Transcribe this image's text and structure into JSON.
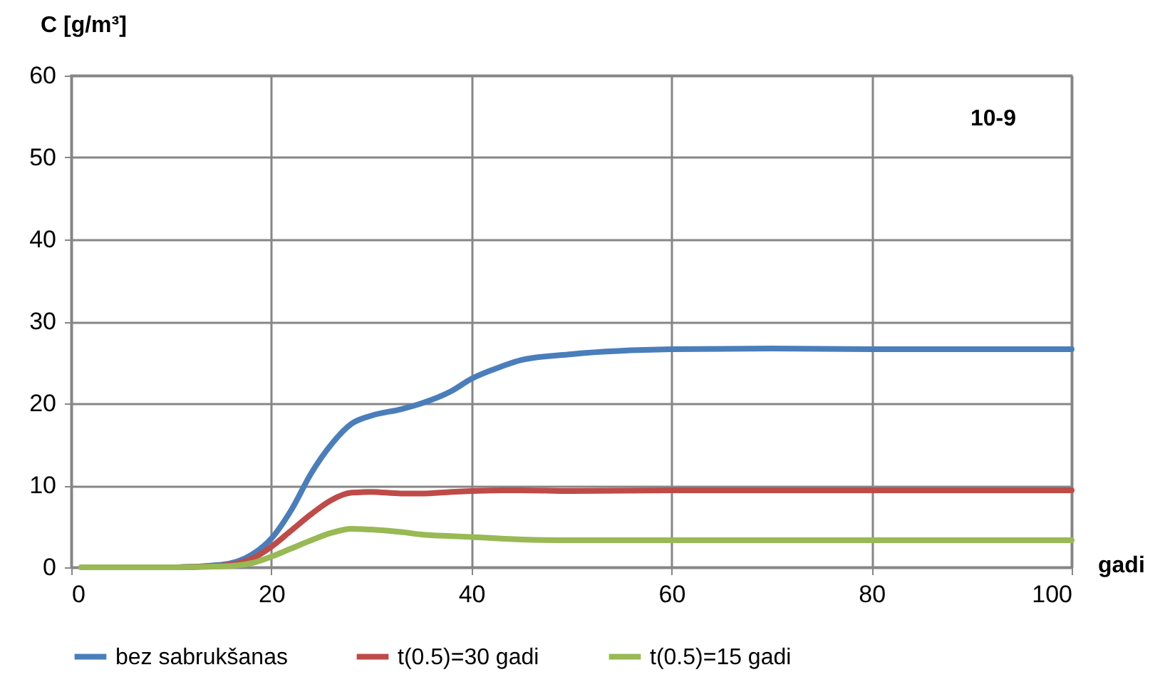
{
  "chart_data": {
    "type": "line",
    "ylabel": "C [g/m³]",
    "xlabel": "gadi",
    "annotations": [
      "10-9"
    ],
    "x": [
      1,
      5,
      10,
      15,
      18,
      20,
      22,
      24,
      26,
      28,
      30,
      33,
      35,
      38,
      40,
      43,
      45,
      50,
      60,
      70,
      80,
      90,
      100
    ],
    "series": [
      {
        "name": "bez sabrukšanas",
        "color": "#4a7ebb",
        "values": [
          0,
          0,
          0,
          0.3,
          1.5,
          3.5,
          7,
          11.5,
          15,
          17.5,
          18.5,
          19.3,
          20,
          21.5,
          23,
          24.5,
          25.3,
          26,
          26.6,
          26.7,
          26.6,
          26.6,
          26.6
        ]
      },
      {
        "name": "t(0.5)=30 gadi",
        "color": "#be4b48",
        "values": [
          null,
          null,
          0,
          0.2,
          1,
          2.5,
          4.5,
          6.5,
          8.2,
          9.1,
          9.2,
          9,
          9,
          9.2,
          9.3,
          9.4,
          9.4,
          9.3,
          9.4,
          9.4,
          9.4,
          9.4,
          9.4
        ]
      },
      {
        "name": "t(0.5)=15 gadi",
        "color": "#98b954",
        "values": [
          0,
          0,
          0,
          0.1,
          0.5,
          1.3,
          2.3,
          3.3,
          4.2,
          4.7,
          4.6,
          4.3,
          4,
          3.8,
          3.7,
          3.5,
          3.4,
          3.3,
          3.3,
          3.3,
          3.3,
          3.3,
          3.3
        ]
      }
    ],
    "xlim": [
      0,
      100
    ],
    "xticks": [
      0,
      20,
      40,
      60,
      80,
      100
    ],
    "ylim": [
      0,
      60
    ],
    "yticks": [
      0,
      10,
      20,
      30,
      40,
      50,
      60
    ],
    "grid": true,
    "legend": "bottom",
    "line_style": "solid",
    "marker": "none"
  }
}
